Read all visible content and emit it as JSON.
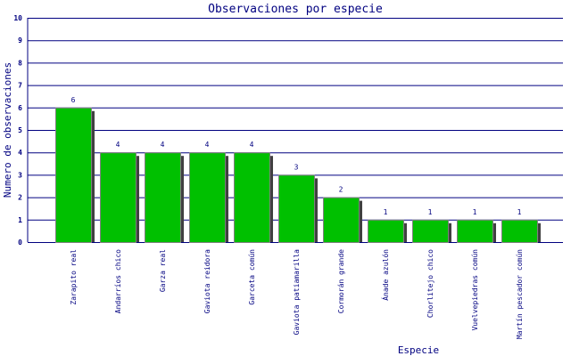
{
  "chart_data": {
    "type": "bar",
    "title": "Observaciones por especie",
    "xlabel": "Especie",
    "ylabel": "Numero de observaciones",
    "ylim": [
      0,
      10
    ],
    "yticks": [
      0,
      1,
      2,
      3,
      4,
      5,
      6,
      7,
      8,
      9,
      10
    ],
    "grid": true,
    "categories": [
      "Zarapito real",
      "Andarríos chico",
      "Garza real",
      "Gaviota reidora",
      "Garceta común",
      "Gaviota patiamarilla",
      "Cormorán grande",
      "Ánade azulón",
      "Chorlitejo chico",
      "Vuelvepiedras común",
      "Martín pescador común"
    ],
    "values": [
      6,
      4,
      4,
      4,
      4,
      3,
      2,
      1,
      1,
      1,
      1
    ],
    "colors": {
      "bar": "#00c000",
      "bar_border": "#808080",
      "shadow": "#404040",
      "grid": "#000080",
      "text": "#000080"
    }
  }
}
